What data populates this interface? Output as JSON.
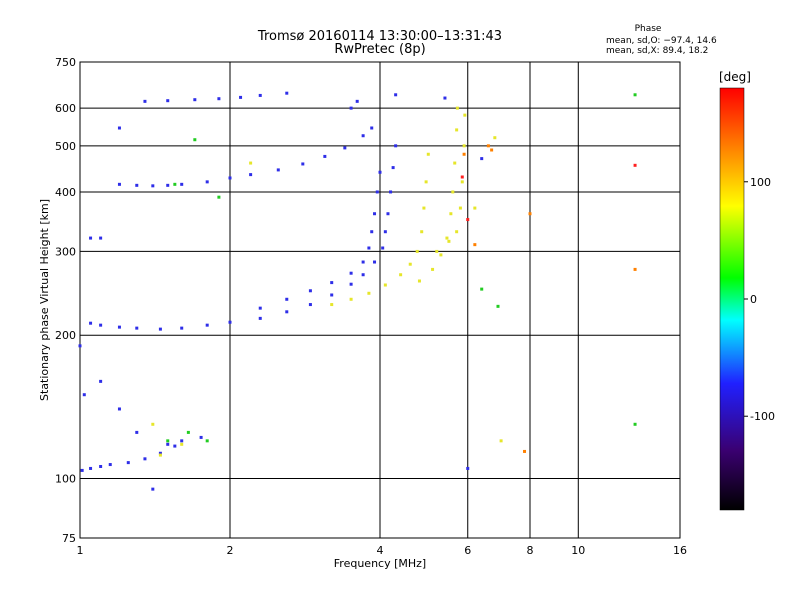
{
  "chart_data": {
    "type": "scatter",
    "title": "Tromsø 20160114 13:30:00–13:31:43",
    "subtitle": "RwPretec (8p)",
    "xlabel": "Frequency [MHz]",
    "ylabel": "Stationary phase Virtual Height [km]",
    "xscale": "log",
    "yscale": "log",
    "xlim": [
      1,
      16
    ],
    "ylim": [
      75,
      750
    ],
    "xticks": [
      1,
      2,
      4,
      6,
      8,
      10,
      16
    ],
    "yticks": [
      75,
      100,
      200,
      300,
      400,
      500,
      600,
      750
    ],
    "grid": true,
    "stats": {
      "heading": "Phase",
      "line_o": "mean, sd,O: −97.4, 14.6",
      "line_x": "mean, sd,X:  89.4, 18.2"
    },
    "colorbar": {
      "label": "[deg]",
      "ticks": [
        100,
        0,
        -100
      ],
      "range": [
        -180,
        180
      ],
      "colors": [
        "#000000",
        "#3a0070",
        "#2020ff",
        "#00ffff",
        "#00ff00",
        "#ffff00",
        "#ff8000",
        "#ff0000"
      ]
    },
    "series": [
      {
        "color": "#2e2ee8",
        "points": [
          [
            1.2,
            415
          ],
          [
            1.3,
            413
          ],
          [
            1.4,
            412
          ],
          [
            1.5,
            413
          ],
          [
            1.6,
            415
          ],
          [
            1.8,
            420
          ],
          [
            2.0,
            428
          ],
          [
            2.2,
            435
          ],
          [
            2.5,
            445
          ],
          [
            2.8,
            458
          ],
          [
            3.1,
            475
          ],
          [
            3.4,
            495
          ],
          [
            3.7,
            525
          ],
          [
            3.85,
            545
          ]
        ]
      },
      {
        "color": "#2e2ee8",
        "points": [
          [
            1.05,
            212
          ],
          [
            1.1,
            210
          ],
          [
            1.2,
            208
          ],
          [
            1.3,
            207
          ],
          [
            1.45,
            206
          ],
          [
            1.6,
            207
          ],
          [
            1.8,
            210
          ],
          [
            2.0,
            213
          ],
          [
            2.3,
            217
          ],
          [
            2.6,
            224
          ],
          [
            2.9,
            232
          ],
          [
            3.2,
            243
          ],
          [
            3.5,
            256
          ],
          [
            3.7,
            268
          ],
          [
            3.9,
            285
          ],
          [
            4.05,
            305
          ],
          [
            4.1,
            330
          ],
          [
            4.15,
            360
          ],
          [
            4.2,
            400
          ],
          [
            4.25,
            450
          ],
          [
            4.3,
            500
          ]
        ]
      },
      {
        "color": "#2e2ee8",
        "points": [
          [
            2.3,
            228
          ],
          [
            2.6,
            238
          ],
          [
            2.9,
            248
          ],
          [
            3.2,
            258
          ],
          [
            3.5,
            270
          ],
          [
            3.7,
            285
          ],
          [
            3.8,
            305
          ],
          [
            3.85,
            330
          ],
          [
            3.9,
            360
          ],
          [
            3.95,
            400
          ],
          [
            4.0,
            440
          ]
        ]
      },
      {
        "color": "#2e2ee8",
        "points": [
          [
            1.01,
            104
          ],
          [
            1.05,
            105
          ],
          [
            1.1,
            106
          ],
          [
            1.15,
            107
          ],
          [
            1.25,
            108
          ],
          [
            1.35,
            110
          ],
          [
            1.45,
            113
          ],
          [
            1.55,
            117
          ],
          [
            1.6,
            120
          ]
        ]
      },
      {
        "color": "#e6e62a",
        "points": [
          [
            3.2,
            232
          ],
          [
            3.5,
            238
          ],
          [
            3.8,
            245
          ],
          [
            4.1,
            255
          ],
          [
            4.4,
            268
          ],
          [
            4.6,
            282
          ],
          [
            4.75,
            300
          ],
          [
            4.85,
            330
          ],
          [
            4.9,
            370
          ],
          [
            4.95,
            420
          ],
          [
            5.0,
            480
          ]
        ]
      },
      {
        "color": "#e6e62a",
        "points": [
          [
            4.8,
            260
          ],
          [
            5.1,
            275
          ],
          [
            5.3,
            295
          ],
          [
            5.45,
            320
          ],
          [
            5.55,
            360
          ],
          [
            5.6,
            400
          ],
          [
            5.65,
            460
          ],
          [
            5.7,
            540
          ],
          [
            5.72,
            600
          ]
        ]
      },
      {
        "color": "#e6e62a",
        "points": [
          [
            5.2,
            300
          ],
          [
            5.5,
            315
          ],
          [
            5.7,
            330
          ],
          [
            5.8,
            370
          ],
          [
            5.85,
            420
          ],
          [
            5.9,
            500
          ],
          [
            5.92,
            580
          ]
        ]
      },
      {
        "color": "#2e2ee8",
        "points": [
          [
            1.35,
            620
          ],
          [
            1.5,
            622
          ],
          [
            1.7,
            625
          ],
          [
            1.9,
            628
          ],
          [
            2.1,
            632
          ],
          [
            2.3,
            638
          ],
          [
            2.6,
            645
          ],
          [
            1.2,
            545
          ],
          [
            1.05,
            320
          ],
          [
            1.1,
            320
          ],
          [
            1.0,
            190
          ],
          [
            1.02,
            150
          ],
          [
            1.1,
            160
          ],
          [
            1.2,
            140
          ],
          [
            1.3,
            125
          ],
          [
            1.5,
            118
          ],
          [
            1.75,
            122
          ],
          [
            1.4,
            95
          ],
          [
            3.5,
            600
          ],
          [
            3.6,
            620
          ],
          [
            4.3,
            640
          ],
          [
            5.4,
            630
          ],
          [
            6.4,
            470
          ],
          [
            6.0,
            105
          ]
        ]
      },
      {
        "color": "#22cc22",
        "points": [
          [
            1.55,
            415
          ],
          [
            1.7,
            515
          ],
          [
            1.5,
            120
          ],
          [
            1.65,
            125
          ],
          [
            1.8,
            120
          ],
          [
            6.4,
            250
          ],
          [
            6.9,
            230
          ],
          [
            13.0,
            640
          ],
          [
            13.0,
            130
          ],
          [
            1.9,
            390
          ]
        ]
      },
      {
        "color": "#e6e62a",
        "points": [
          [
            1.4,
            130
          ],
          [
            1.6,
            118
          ],
          [
            1.45,
            112
          ],
          [
            2.2,
            460
          ],
          [
            6.2,
            370
          ],
          [
            7.0,
            120
          ],
          [
            6.8,
            520
          ]
        ]
      },
      {
        "color": "#ff8000",
        "points": [
          [
            6.6,
            500
          ],
          [
            6.7,
            490
          ],
          [
            7.8,
            114
          ],
          [
            8.0,
            360
          ],
          [
            13.0,
            275
          ],
          [
            6.2,
            310
          ],
          [
            5.9,
            480
          ]
        ]
      },
      {
        "color": "#ff2020",
        "points": [
          [
            13.0,
            455
          ],
          [
            5.85,
            430
          ],
          [
            6.0,
            350
          ]
        ]
      }
    ]
  }
}
